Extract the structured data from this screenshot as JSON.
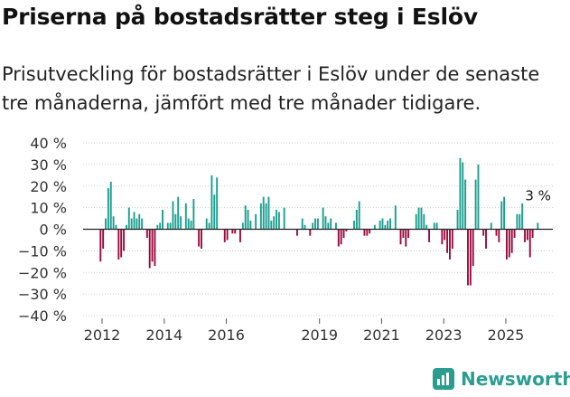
{
  "title": "Priserna på bostadsrätter steg i Eslöv",
  "subtitle": "Prisutveckling för bostadsrätter i Eslöv under de senaste tre månaderna, jämfört med tre månader tidigare.",
  "brand": "Newsworthy",
  "chart_data": {
    "type": "bar",
    "title": "Priserna på bostadsrätter steg i Eslöv",
    "xlabel": "",
    "ylabel": "",
    "ylim": [
      -40,
      40
    ],
    "y_ticks": [
      40,
      30,
      20,
      10,
      0,
      -10,
      -20,
      -30,
      -40
    ],
    "y_tick_labels": [
      "40 %",
      "30 %",
      "20 %",
      "10 %",
      "0 %",
      "−10 %",
      "−20 %",
      "−30 %",
      "−40 %"
    ],
    "x_ticks": [
      2012,
      2014,
      2016,
      2019,
      2021,
      2023,
      2025
    ],
    "x_start": 2011.95,
    "x_step": 0.0833,
    "positive_color": "#1a9e8f",
    "negative_color": "#9b0a3e",
    "annotation": "3 %",
    "values": [
      -15,
      -9,
      5,
      19,
      22,
      6,
      2,
      -14,
      -13,
      -10,
      2,
      10,
      5,
      8,
      5,
      7,
      5,
      0,
      -4,
      -18,
      -15,
      -17,
      2,
      3,
      9,
      0,
      3,
      3,
      13,
      7,
      15,
      6,
      0,
      12,
      5,
      4,
      14,
      0,
      -8,
      -9,
      0,
      5,
      3,
      25,
      16,
      24,
      0,
      0,
      -6,
      -5,
      0,
      -2,
      -2,
      0,
      -6,
      3,
      11,
      9,
      4,
      0,
      7,
      0,
      12,
      15,
      12,
      15,
      4,
      6,
      9,
      8,
      0,
      10,
      0,
      0,
      0,
      0,
      -3,
      0,
      5,
      2,
      0,
      -3,
      3,
      5,
      5,
      0,
      10,
      6,
      3,
      5,
      0,
      3,
      -8,
      -7,
      -4,
      -1,
      0,
      0,
      4,
      9,
      13,
      0,
      -3,
      -3,
      -2,
      0,
      2,
      0,
      4,
      5,
      2,
      4,
      5,
      0,
      11,
      0,
      -7,
      -4,
      -8,
      -4,
      0,
      0,
      7,
      10,
      10,
      7,
      2,
      -6,
      0,
      3,
      3,
      0,
      -7,
      -5,
      -11,
      -14,
      -9,
      0,
      9,
      33,
      31,
      23,
      -26,
      -26,
      -17,
      23,
      30,
      0,
      -3,
      -9,
      0,
      3,
      0,
      -3,
      -6,
      13,
      15,
      -14,
      -13,
      -11,
      -4,
      7,
      7,
      12,
      -6,
      -5,
      -13,
      -4,
      0,
      3
    ]
  }
}
